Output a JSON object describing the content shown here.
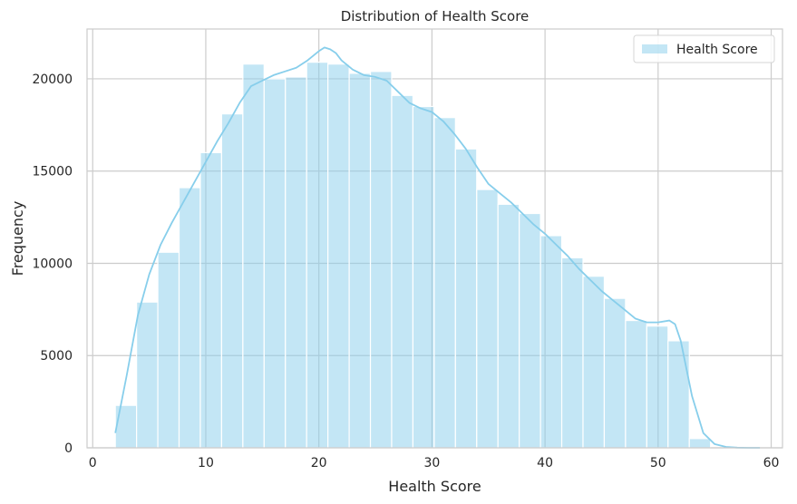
{
  "chart_data": {
    "type": "bar",
    "title": "Distribution of Health Score",
    "xlabel": "Health Score",
    "ylabel": "Frequency",
    "xlim": [
      -0.5,
      61.0
    ],
    "ylim": [
      0,
      22700
    ],
    "xticks": [
      0,
      10,
      20,
      30,
      40,
      50,
      60
    ],
    "yticks": [
      0,
      5000,
      10000,
      15000,
      20000
    ],
    "grid": true,
    "legend": {
      "placement": "top-right",
      "entries": [
        "Health Score"
      ]
    },
    "series": [
      {
        "name": "Health Score",
        "color": "#87CEEB",
        "bin_edges": [
          2.0,
          3.88,
          5.76,
          7.64,
          9.52,
          11.4,
          13.28,
          15.16,
          17.04,
          18.92,
          20.8,
          22.68,
          24.56,
          26.44,
          28.32,
          30.2,
          32.08,
          33.96,
          35.84,
          37.72,
          39.6,
          41.48,
          43.36,
          45.24,
          47.12,
          49.0,
          50.88,
          52.76,
          54.64
        ],
        "counts": [
          2300,
          7900,
          10600,
          14100,
          16000,
          18100,
          20800,
          20000,
          20100,
          20900,
          20800,
          20300,
          20400,
          19100,
          18500,
          17900,
          16200,
          14000,
          13200,
          12700,
          11500,
          10300,
          9300,
          8100,
          6900,
          6600,
          5800,
          500
        ]
      }
    ],
    "kde": {
      "x": [
        2.0,
        3.0,
        4.0,
        5.0,
        6.0,
        7.0,
        8.0,
        9.0,
        10.0,
        11.0,
        12.0,
        13.0,
        14.0,
        15.0,
        16.0,
        17.0,
        18.0,
        19.0,
        20.0,
        20.5,
        21.0,
        21.5,
        22.0,
        23.0,
        24.0,
        25.0,
        26.0,
        27.0,
        28.0,
        29.0,
        30.0,
        31.0,
        32.0,
        33.0,
        34.0,
        35.0,
        36.0,
        37.0,
        38.0,
        39.0,
        40.0,
        41.0,
        42.0,
        43.0,
        44.0,
        45.0,
        46.0,
        47.0,
        48.0,
        49.0,
        50.0,
        51.0,
        51.5,
        52.0,
        53.0,
        54.0,
        55.0,
        56.0,
        57.0,
        58.0,
        59.0
      ],
      "y": [
        800,
        3900,
        7200,
        9400,
        11000,
        12200,
        13300,
        14400,
        15500,
        16600,
        17600,
        18700,
        19600,
        19900,
        20200,
        20400,
        20600,
        21000,
        21500,
        21700,
        21600,
        21400,
        21000,
        20500,
        20200,
        20100,
        19900,
        19300,
        18700,
        18400,
        18200,
        17700,
        17000,
        16200,
        15200,
        14300,
        13800,
        13300,
        12700,
        12100,
        11600,
        11000,
        10400,
        9700,
        9100,
        8500,
        8000,
        7500,
        7000,
        6800,
        6800,
        6900,
        6700,
        5800,
        2800,
        800,
        200,
        50,
        10,
        0,
        0
      ]
    }
  }
}
